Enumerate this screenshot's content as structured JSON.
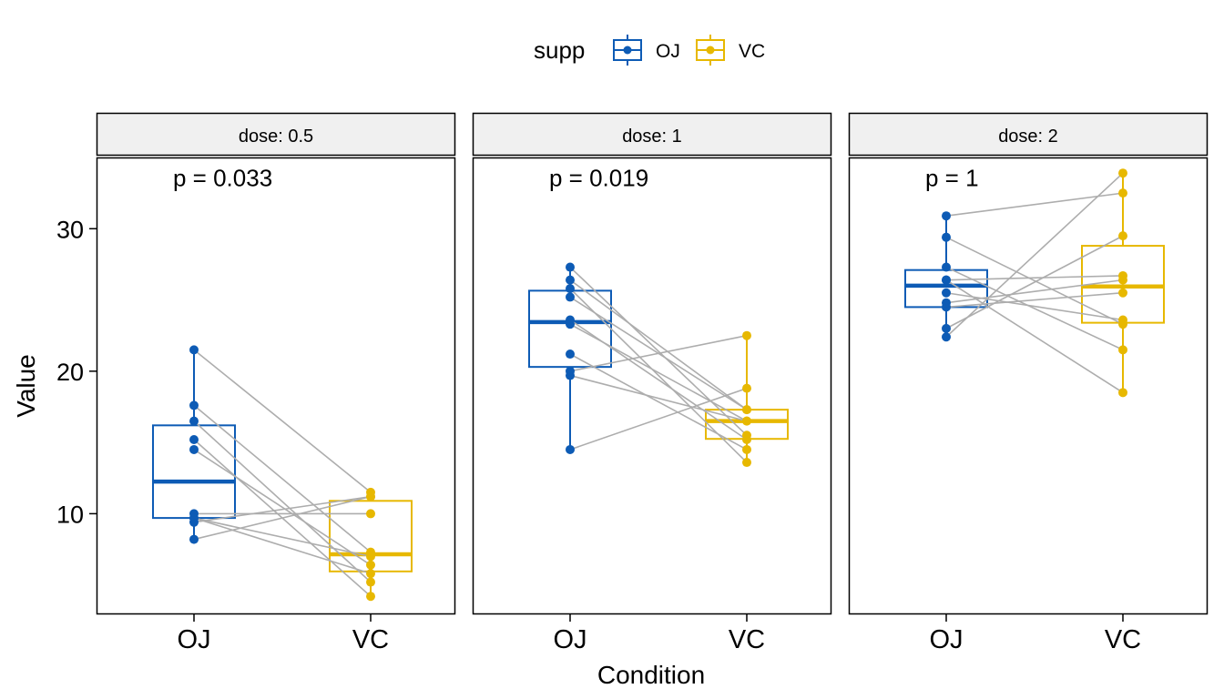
{
  "chart_data": {
    "type": "boxplot",
    "xlabel": "Condition",
    "ylabel": "Value",
    "ylim": [
      3,
      35
    ],
    "yticks": [
      10,
      20,
      30
    ],
    "categories": [
      "OJ",
      "VC"
    ],
    "legend": {
      "title": "supp",
      "position": "top",
      "entries": [
        {
          "label": "OJ",
          "color": "#0D5BB5"
        },
        {
          "label": "VC",
          "color": "#E7B800"
        }
      ]
    },
    "pair_line_color": "#ADADAD",
    "strip_fill": "#F0F0F0",
    "panels": [
      {
        "strip_label": "dose: 0.5",
        "annotation": "p = 0.033",
        "annotation_y": 33.5,
        "box": {
          "OJ": {
            "whisker_low": 8.2,
            "q1": 9.7,
            "median": 12.25,
            "q3": 16.2,
            "whisker_high": 21.5
          },
          "VC": {
            "whisker_low": 4.2,
            "q1": 5.95,
            "median": 7.15,
            "q3": 10.9,
            "whisker_high": 11.5
          }
        },
        "pairs": [
          [
            15.2,
            4.2
          ],
          [
            21.5,
            11.5
          ],
          [
            17.6,
            7.3
          ],
          [
            9.7,
            5.8
          ],
          [
            14.5,
            6.4
          ],
          [
            10.0,
            10.0
          ],
          [
            8.2,
            11.2
          ],
          [
            9.4,
            11.2
          ],
          [
            16.5,
            5.2
          ],
          [
            9.7,
            7.0
          ]
        ]
      },
      {
        "strip_label": "dose: 1",
        "annotation": "p = 0.019",
        "annotation_y": 33.5,
        "box": {
          "OJ": {
            "whisker_low": 14.5,
            "q1": 20.3,
            "median": 23.45,
            "q3": 25.65,
            "whisker_high": 27.3
          },
          "VC": {
            "whisker_low": 13.6,
            "q1": 15.25,
            "median": 16.5,
            "q3": 17.3,
            "whisker_high": 22.5
          }
        },
        "pairs": [
          [
            19.7,
            16.5
          ],
          [
            23.3,
            16.5
          ],
          [
            23.6,
            15.2
          ],
          [
            26.4,
            17.3
          ],
          [
            20.0,
            22.5
          ],
          [
            25.2,
            17.3
          ],
          [
            25.8,
            13.6
          ],
          [
            21.2,
            14.5
          ],
          [
            14.5,
            18.8
          ],
          [
            27.3,
            15.5
          ]
        ]
      },
      {
        "strip_label": "dose: 2",
        "annotation": "p = 1",
        "annotation_y": 33.5,
        "box": {
          "OJ": {
            "whisker_low": 22.4,
            "q1": 24.5,
            "median": 26.0,
            "q3": 27.1,
            "whisker_high": 30.9
          },
          "VC": {
            "whisker_low": 18.5,
            "q1": 23.4,
            "median": 25.95,
            "q3": 28.8,
            "whisker_high": 33.9
          }
        },
        "pairs": [
          [
            25.5,
            23.6
          ],
          [
            26.4,
            18.5
          ],
          [
            22.4,
            33.9
          ],
          [
            24.5,
            25.5
          ],
          [
            24.8,
            26.4
          ],
          [
            30.9,
            32.5
          ],
          [
            26.4,
            26.7
          ],
          [
            27.3,
            21.5
          ],
          [
            29.4,
            23.3
          ],
          [
            23.0,
            29.5
          ]
        ]
      }
    ]
  }
}
